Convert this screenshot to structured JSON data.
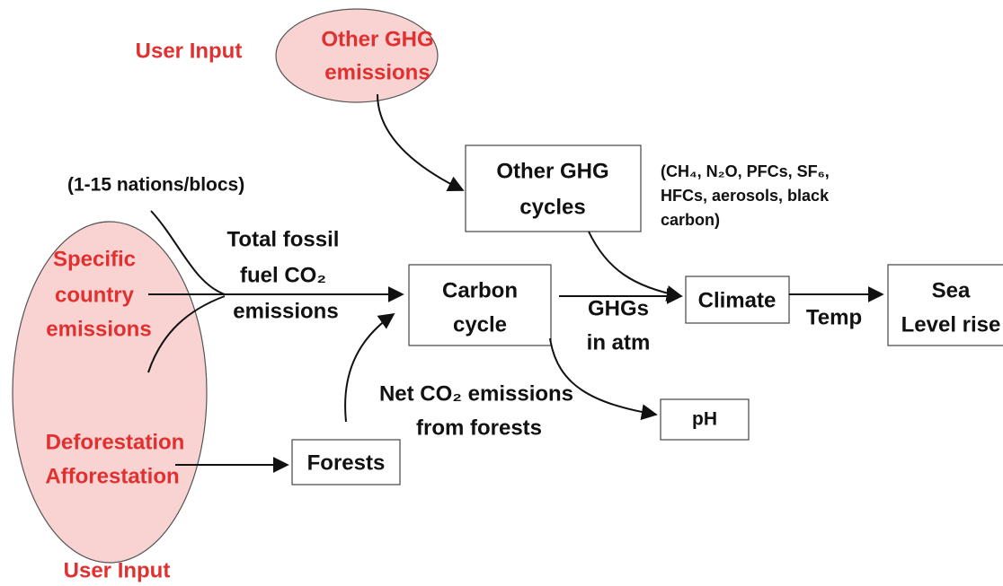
{
  "user_input_top": "User Input",
  "user_input_bottom": "User Input",
  "other_ghg_emissions": {
    "lines": [
      "Other GHG",
      "emissions"
    ]
  },
  "other_ghg_cycles": {
    "lines": [
      "Other GHG",
      "cycles"
    ]
  },
  "ghg_note": {
    "lines": [
      "(CH₄, N₂O, PFCs, SF₆,",
      "HFCs, aerosols, black",
      "carbon)"
    ]
  },
  "nations_note": "(1-15 nations/blocs)",
  "specific_country_emissions": {
    "lines": [
      "Specific",
      "country",
      "emissions"
    ]
  },
  "deforestation": {
    "lines": [
      "Deforestation",
      "Afforestation"
    ]
  },
  "fossil_label": {
    "lines": [
      "Total fossil",
      "fuel CO₂",
      "emissions"
    ]
  },
  "carbon_cycle": {
    "lines": [
      "Carbon",
      "cycle"
    ]
  },
  "ghgs_label": {
    "lines": [
      "GHGs",
      "in atm"
    ]
  },
  "climate": "Climate",
  "temp_label": "Temp",
  "sea_level": {
    "lines": [
      "Sea",
      "Level rise"
    ]
  },
  "forest_label": {
    "lines": [
      "Net CO₂ emissions",
      "from forests"
    ]
  },
  "ph": "pH",
  "forests": "Forests"
}
